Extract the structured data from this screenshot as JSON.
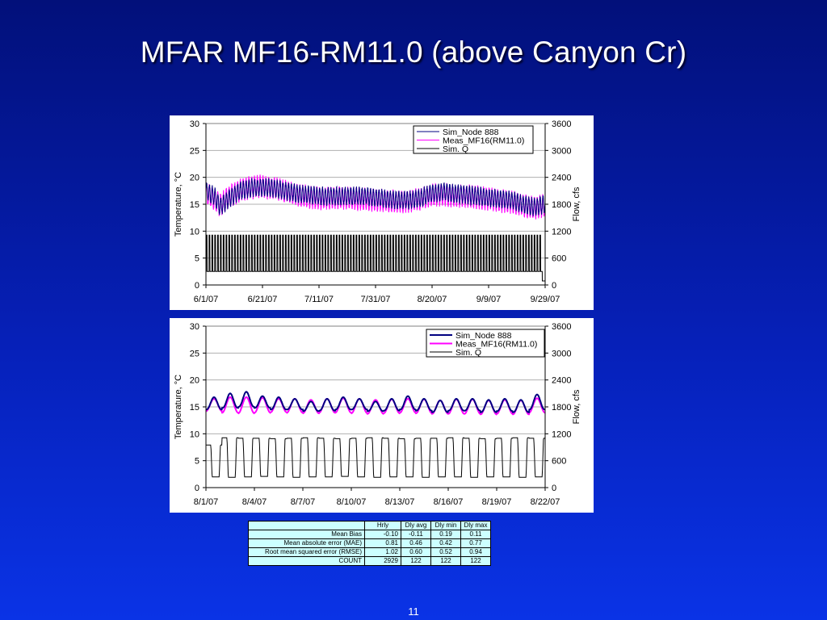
{
  "slide": {
    "title": "MFAR MF16-RM11.0 (above Canyon Cr)",
    "page_number": "11"
  },
  "colors": {
    "sim_temp": "#000080",
    "meas_temp": "#ff00ff",
    "sim_flow": "#000000"
  },
  "chart_data": [
    {
      "type": "line",
      "ylabel": "Temperature, °C",
      "y2label": "Flow, cfs",
      "ylim": [
        0,
        30
      ],
      "y2lim": [
        0,
        3600
      ],
      "yticks": [
        "0",
        "5",
        "10",
        "15",
        "20",
        "25",
        "30"
      ],
      "y2ticks": [
        "0",
        "600",
        "1200",
        "1800",
        "2400",
        "3000",
        "3600"
      ],
      "xticks": [
        "6/1/07",
        "6/21/07",
        "7/11/07",
        "7/31/07",
        "8/20/07",
        "9/9/07",
        "9/29/07"
      ],
      "xlim_days": [
        0,
        120
      ],
      "grid": "horizontal",
      "legend": "top-right",
      "series": [
        {
          "name": "Sim_Node 888",
          "axis": "left",
          "x_days": [
            0,
            3,
            5,
            8,
            12,
            16,
            20,
            24,
            28,
            32,
            36,
            40,
            44,
            48,
            52,
            56,
            60,
            64,
            68,
            72,
            76,
            80,
            84,
            88,
            92,
            96,
            100,
            104,
            108,
            112,
            116,
            120
          ],
          "mean": [
            17.5,
            16.5,
            14.5,
            16.0,
            17.5,
            18.0,
            18.2,
            18.0,
            17.5,
            17.0,
            16.8,
            16.5,
            16.5,
            16.5,
            16.5,
            16.5,
            16.3,
            16.0,
            15.8,
            15.8,
            16.2,
            17.0,
            17.3,
            17.0,
            16.8,
            16.5,
            16.2,
            16.0,
            15.8,
            15.0,
            14.5,
            15.0
          ],
          "daily_amplitude": 1.5
        },
        {
          "name": "Meas_MF16(RM11.0)",
          "axis": "left",
          "x_days": [
            0,
            3,
            5,
            8,
            12,
            16,
            20,
            24,
            28,
            32,
            36,
            40,
            44,
            48,
            52,
            56,
            60,
            64,
            68,
            72,
            76,
            80,
            84,
            88,
            92,
            96,
            100,
            104,
            108,
            112,
            116,
            120
          ],
          "mean": [
            17.0,
            16.0,
            14.8,
            16.3,
            17.6,
            18.2,
            18.3,
            18.0,
            17.4,
            16.7,
            16.4,
            16.1,
            16.2,
            16.2,
            16.0,
            15.9,
            15.8,
            15.6,
            15.5,
            15.6,
            16.0,
            16.6,
            16.8,
            16.6,
            16.5,
            16.3,
            16.0,
            15.7,
            15.4,
            14.8,
            14.3,
            14.8
          ],
          "daily_amplitude": 1.9
        },
        {
          "name": "Sim. Q",
          "axis": "right",
          "base": 300,
          "peak": 1110,
          "period_days": 1,
          "end_drop_day": 119
        }
      ]
    },
    {
      "type": "line",
      "ylabel": "Temperature, °C",
      "y2label": "Flow, cfs",
      "ylim": [
        0,
        30
      ],
      "y2lim": [
        0,
        3600
      ],
      "yticks": [
        "0",
        "5",
        "10",
        "15",
        "20",
        "25",
        "30"
      ],
      "y2ticks": [
        "0",
        "600",
        "1200",
        "1800",
        "2400",
        "3000",
        "3600"
      ],
      "xticks": [
        "8/1/07",
        "8/4/07",
        "8/7/07",
        "8/10/07",
        "8/13/07",
        "8/16/07",
        "8/19/07",
        "8/22/07"
      ],
      "xlim_days": [
        0,
        21
      ],
      "grid": "horizontal",
      "legend": "top-right",
      "series": [
        {
          "name": "Sim_Node 888",
          "axis": "left",
          "daily_peaks": [
            16.8,
            17.5,
            17.8,
            17.0,
            16.8,
            16.5,
            16.0,
            16.5,
            16.8,
            16.5,
            16.0,
            16.5,
            17.0,
            16.5,
            16.2,
            16.5,
            16.5,
            16.3,
            16.5,
            16.3,
            17.3
          ],
          "daily_lows": [
            14.5,
            14.8,
            15.0,
            14.8,
            14.5,
            14.5,
            14.2,
            14.3,
            14.5,
            14.5,
            14.2,
            14.3,
            14.5,
            14.3,
            14.0,
            14.3,
            14.3,
            14.0,
            14.2,
            14.0,
            14.5
          ]
        },
        {
          "name": "Meas_MF16(RM11.0)",
          "axis": "left",
          "daily_peaks": [
            16.5,
            16.8,
            16.8,
            16.7,
            16.5,
            16.5,
            16.3,
            16.5,
            16.6,
            16.5,
            16.3,
            16.4,
            16.5,
            16.4,
            16.2,
            16.4,
            16.4,
            16.2,
            16.3,
            16.2,
            16.6
          ],
          "daily_lows": [
            14.2,
            13.9,
            13.8,
            13.9,
            14.0,
            13.9,
            13.8,
            13.9,
            13.9,
            13.8,
            13.7,
            13.8,
            13.9,
            13.8,
            13.7,
            13.7,
            13.7,
            13.6,
            13.7,
            13.6,
            13.9
          ]
        },
        {
          "name": "Sim. Q",
          "axis": "right",
          "daily_peaks": [
            950,
            1110,
            1100,
            1100,
            1090,
            1100,
            1110,
            1100,
            1090,
            1100,
            1110,
            1100,
            1090,
            1100,
            1100,
            1110,
            1100,
            1090,
            1100,
            1110,
            1100
          ],
          "daily_lows": [
            240,
            230,
            240,
            250,
            240,
            230,
            240,
            240,
            250,
            240,
            230,
            240,
            240,
            230,
            240,
            240,
            230,
            240,
            240,
            230,
            240
          ]
        }
      ]
    }
  ],
  "stats_table": {
    "headers": [
      "",
      "Hrly",
      "Dly avg",
      "Dly min",
      "Dly max"
    ],
    "rows": [
      {
        "label": "Mean Bias",
        "values": [
          "-0.10",
          "-0.11",
          "0.19",
          "0.11"
        ]
      },
      {
        "label": "Mean absolute error (MAE)",
        "values": [
          "0.81",
          "0.46",
          "0.42",
          "0.77"
        ]
      },
      {
        "label": "Root mean squared error (RMSE)",
        "values": [
          "1.02",
          "0.60",
          "0.52",
          "0.94"
        ]
      },
      {
        "label": "COUNT",
        "values": [
          "2929",
          "122",
          "122",
          "122"
        ]
      }
    ]
  }
}
